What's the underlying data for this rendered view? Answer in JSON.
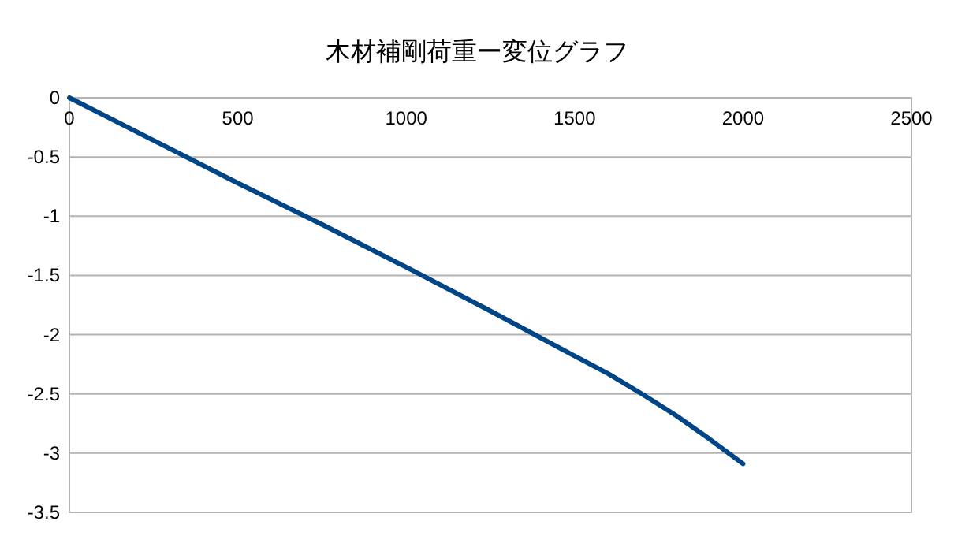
{
  "chart_data": {
    "type": "line",
    "title": "木材補剛荷重ー変位グラフ",
    "x": [
      0,
      250,
      500,
      750,
      1000,
      1250,
      1500,
      1600,
      1700,
      1800,
      1900,
      2000
    ],
    "series": [
      {
        "color": "#004586",
        "values": [
          0,
          -0.36,
          -0.72,
          -1.07,
          -1.43,
          -1.8,
          -2.18,
          -2.33,
          -2.5,
          -2.68,
          -2.88,
          -3.09
        ]
      }
    ],
    "xlim": [
      0,
      2500
    ],
    "ylim": [
      -3.5,
      0
    ],
    "xticks": [
      0,
      500,
      1000,
      1500,
      2000,
      2500
    ],
    "yticks": [
      0,
      -0.5,
      -1,
      -1.5,
      -2,
      -2.5,
      -3,
      -3.5
    ],
    "grid": "y"
  }
}
